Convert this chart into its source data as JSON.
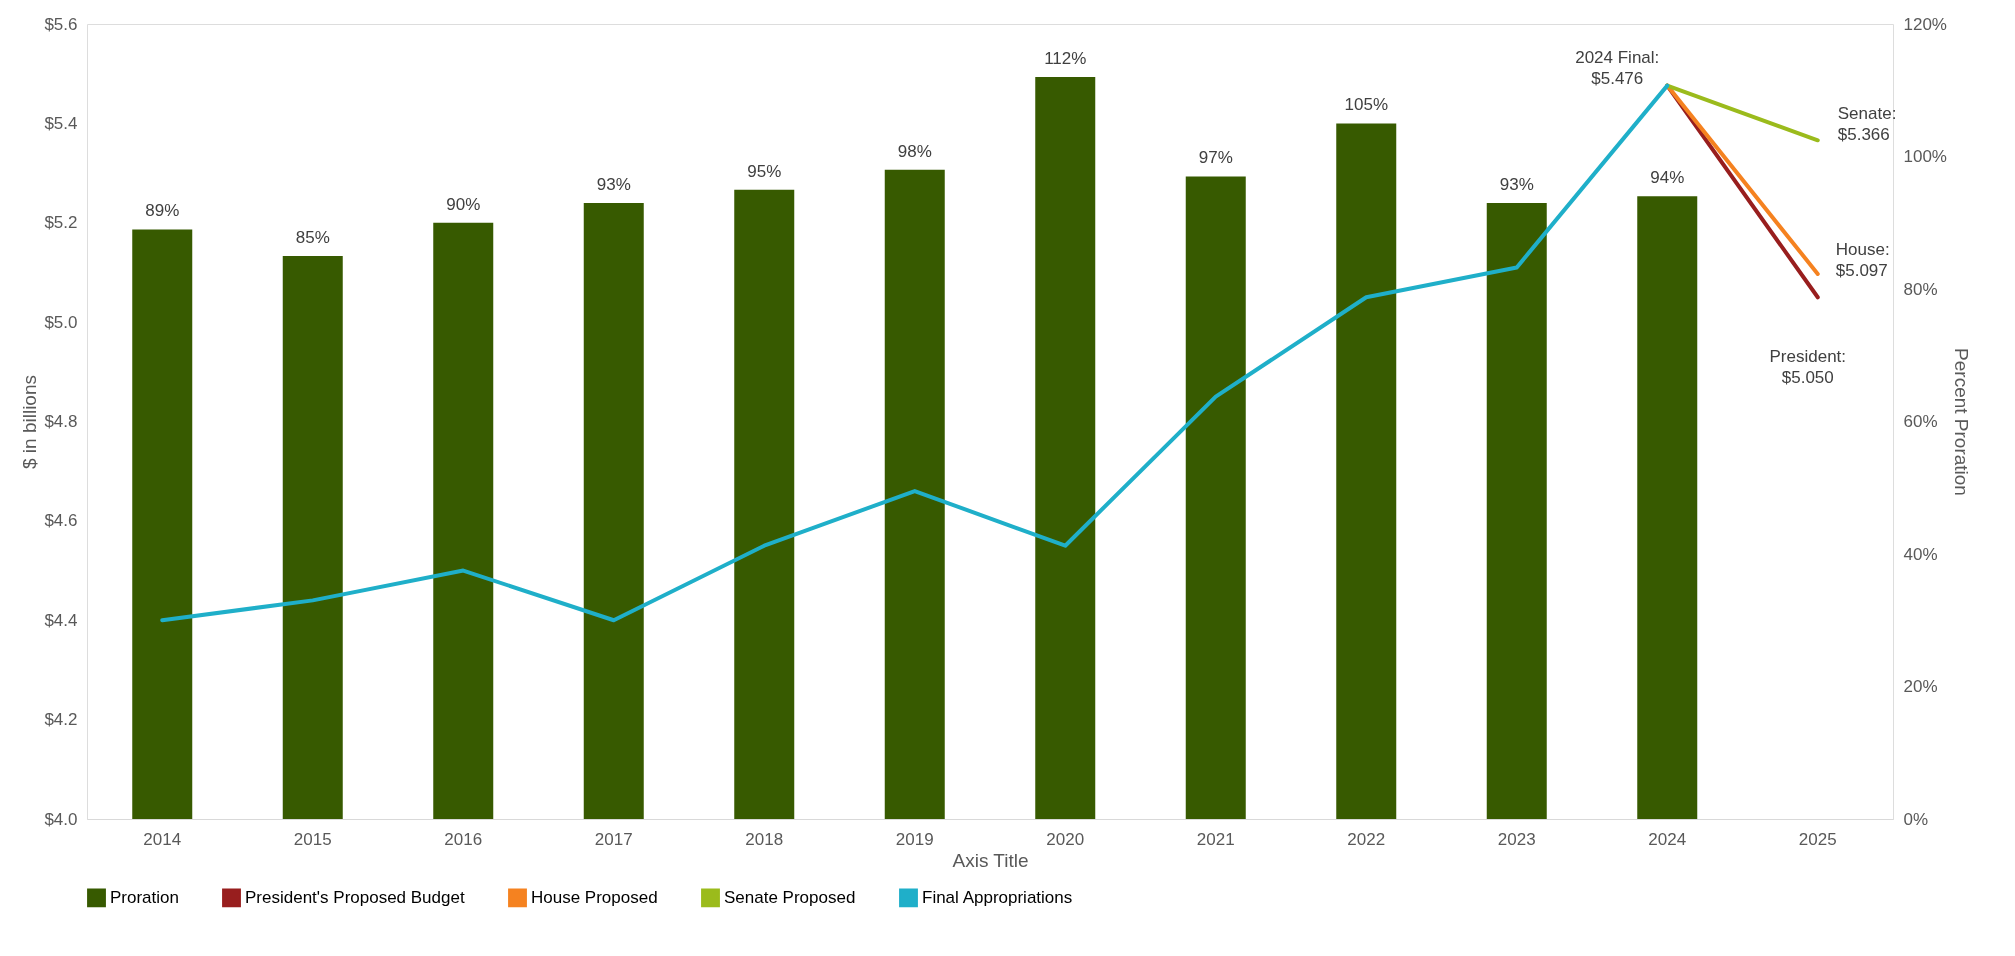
{
  "chart_data": {
    "type": "bar",
    "categories": [
      "2014",
      "2015",
      "2016",
      "2017",
      "2018",
      "2019",
      "2020",
      "2021",
      "2022",
      "2023",
      "2024",
      "2025"
    ],
    "xlabel": "Axis Title",
    "ylabel": "$ in billions",
    "y2label": "Percent Proration",
    "series": [
      {
        "name": "Proration",
        "axis": "y2",
        "color": "#375a00",
        "values": [
          89,
          85,
          90,
          93,
          95,
          98,
          112,
          97,
          105,
          93,
          94,
          null
        ],
        "value_labels": [
          "89%",
          "85%",
          "90%",
          "93%",
          "95%",
          "98%",
          "112%",
          "97%",
          "105%",
          "93%",
          "94%",
          null
        ]
      },
      {
        "name": "President's Proposed Budget",
        "type": "line",
        "color": "#981e1e",
        "values": [
          null,
          null,
          null,
          null,
          null,
          null,
          null,
          null,
          null,
          null,
          5.476,
          5.05
        ]
      },
      {
        "name": "House Proposed",
        "type": "line",
        "color": "#f58220",
        "values": [
          null,
          null,
          null,
          null,
          null,
          null,
          null,
          null,
          null,
          null,
          5.476,
          5.097
        ]
      },
      {
        "name": "Senate Proposed",
        "type": "line",
        "color": "#9bbb1c",
        "values": [
          null,
          null,
          null,
          null,
          null,
          null,
          null,
          null,
          null,
          null,
          5.476,
          5.366
        ]
      },
      {
        "name": "Final Appropriations",
        "type": "line",
        "color": "#1fafc9",
        "values": [
          4.4,
          4.44,
          4.5,
          4.4,
          4.55,
          4.66,
          4.55,
          4.85,
          5.05,
          5.11,
          5.476,
          null
        ]
      }
    ],
    "ylim": [
      4.0,
      5.6
    ],
    "yticks": [
      {
        "value": 4.0,
        "label": "$4.0"
      },
      {
        "value": 4.2,
        "label": "$4.2"
      },
      {
        "value": 4.4,
        "label": "$4.4"
      },
      {
        "value": 4.6,
        "label": "$4.6"
      },
      {
        "value": 4.8,
        "label": "$4.8"
      },
      {
        "value": 5.0,
        "label": "$5.0"
      },
      {
        "value": 5.2,
        "label": "$5.2"
      },
      {
        "value": 5.4,
        "label": "$5.4"
      },
      {
        "value": 5.6,
        "label": "$5.6"
      }
    ],
    "y2lim": [
      0,
      120
    ],
    "y2ticks": [
      {
        "value": 0,
        "label": "0%"
      },
      {
        "value": 20,
        "label": "20%"
      },
      {
        "value": 40,
        "label": "40%"
      },
      {
        "value": 60,
        "label": "60%"
      },
      {
        "value": 80,
        "label": "80%"
      },
      {
        "value": 100,
        "label": "100%"
      },
      {
        "value": 120,
        "label": "120%"
      }
    ],
    "annotations": [
      {
        "text": "2024 Final:\n$5.476",
        "x": "2024",
        "y": 5.476
      },
      {
        "text": "Senate:\n$5.366",
        "x": "2025",
        "y": 5.366
      },
      {
        "text": "House:\n$5.097",
        "x": "2025",
        "y": 5.097
      },
      {
        "text": "President:\n$5.050",
        "x": "2025",
        "y": 5.05
      }
    ],
    "legend": "bottom",
    "grid": false,
    "line_style": "solid",
    "marker": "none"
  }
}
